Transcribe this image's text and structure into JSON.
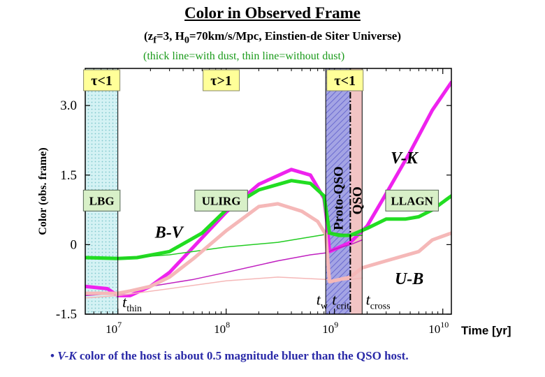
{
  "header": {
    "title": "Color in Observed Frame",
    "subtitle_pre": "(z",
    "subtitle_sub1": "f",
    "subtitle_mid": "=3, H",
    "subtitle_sub2": "0",
    "subtitle_post": "=70km/s/Mpc, Einstien-de Siter Universe)",
    "note": "(thick line=with dust,  thin line=without dust)"
  },
  "footer": {
    "bullet": "• ",
    "italic": "V-K",
    "text": " color of the host is about 0.5 magnitude bluer than the QSO host."
  },
  "chart_data": {
    "type": "line",
    "xscale": "log",
    "xlim": [
      5000000,
      12000000000
    ],
    "ylim": [
      -1.5,
      3.8
    ],
    "xlabel": "Time  [yr]",
    "ylabel": "Color (obs. frame)",
    "yticks": [
      {
        "value": 3.0,
        "label": "3.0"
      },
      {
        "value": 1.5,
        "label": "1.5"
      },
      {
        "value": 0,
        "label": "0"
      },
      {
        "value": -1.5,
        "label": "-1.5"
      }
    ],
    "xticks": [
      {
        "value": 10000000,
        "base": "10",
        "exp": "7"
      },
      {
        "value": 100000000,
        "base": "10",
        "exp": "8"
      },
      {
        "value": 1000000000,
        "base": "10",
        "exp": "9"
      },
      {
        "value": 10000000000,
        "base": "10",
        "exp": "10"
      }
    ],
    "regions": [
      {
        "name": "LBG",
        "x0": 5000000,
        "x1": 10000000,
        "color": "#cdeef0",
        "hatch": "dots"
      },
      {
        "name": "Proto-QSO",
        "x0": 830000000,
        "x1": 1400000000,
        "color": "#9e9ee0",
        "hatch": "diag"
      },
      {
        "name": "QSO",
        "x0": 1400000000,
        "x1": 1800000000,
        "color": "#f2c4c4",
        "hatch": "none"
      }
    ],
    "tau_labels": [
      {
        "text": "τ<1",
        "x": 7100000
      },
      {
        "text": "τ>1",
        "x": 90000000
      },
      {
        "text": "τ<1",
        "x": 1250000000
      }
    ],
    "phase_labels": [
      {
        "text": "LBG",
        "x": 7100000,
        "y": 0.95
      },
      {
        "text": "ULIRG",
        "x": 90000000,
        "y": 0.95
      },
      {
        "text": "LLAGN",
        "x": 5200000000,
        "y": 0.95
      }
    ],
    "vertical_labels": [
      {
        "text": "Proto-QSO",
        "x": 1070000000,
        "y": 1.0
      },
      {
        "text": "QSO",
        "x": 1600000000,
        "y": 0.95
      }
    ],
    "time_markers": [
      {
        "name": "t_thin",
        "base": "t",
        "sub": "thin",
        "x": 10000000,
        "label_x": 11000000,
        "label_y": -1.35,
        "line": "solid"
      },
      {
        "name": "t_w",
        "base": "t",
        "sub": "w",
        "x": 830000000,
        "label_x": 680000000,
        "label_y": -1.3,
        "line": "solid"
      },
      {
        "name": "t_crit",
        "base": "t",
        "sub": "crit",
        "x": 1400000000,
        "label_x": 950000000,
        "label_y": -1.3,
        "line": "dashdot"
      },
      {
        "name": "t_cross",
        "base": "t",
        "sub": "cross",
        "x": 1800000000,
        "label_x": 1950000000,
        "label_y": -1.3,
        "line": "solid"
      }
    ],
    "series_labels": [
      {
        "text": "B-V",
        "x": 22000000,
        "y": 0.15,
        "color": "#000000"
      },
      {
        "text": "V-K",
        "x": 3300000000,
        "y": 1.75,
        "color": "#000000"
      },
      {
        "text": "U-B",
        "x": 3600000000,
        "y": -0.85,
        "color": "#000000"
      }
    ],
    "series": [
      {
        "name": "V-K with dust",
        "color": "#ee22ee",
        "width": 5,
        "x": [
          5000000,
          8000000,
          10000000,
          13000000,
          20000000,
          30000000,
          50000000,
          100000000,
          200000000,
          400000000,
          600000000,
          800000000,
          850000000,
          900000000,
          1400000000,
          2000000000,
          3000000000,
          5000000000,
          8000000000,
          12000000000
        ],
        "y": [
          -0.9,
          -0.95,
          -1.1,
          -1.1,
          -0.9,
          -0.6,
          -0.05,
          0.7,
          1.3,
          1.62,
          1.5,
          1.0,
          0.5,
          -0.15,
          0.05,
          0.4,
          1.1,
          2.0,
          2.9,
          3.5
        ]
      },
      {
        "name": "V-K without dust",
        "color": "#c020c0",
        "width": 1.5,
        "x": [
          5000000,
          10000000,
          20000000,
          50000000,
          100000000,
          300000000,
          600000000,
          830000000,
          1000000000,
          1400000000,
          1800000000
        ],
        "y": [
          -1.1,
          -1.05,
          -0.9,
          -0.75,
          -0.6,
          -0.35,
          -0.22,
          -0.18,
          -0.1,
          0.0,
          0.1
        ]
      },
      {
        "name": "B-V with dust",
        "color": "#22dd22",
        "width": 5,
        "x": [
          5000000,
          10000000,
          15000000,
          30000000,
          60000000,
          100000000,
          200000000,
          400000000,
          600000000,
          800000000,
          900000000,
          1100000000,
          1400000000,
          2000000000,
          3000000000,
          4500000000,
          6000000000,
          8000000000,
          12000000000
        ],
        "y": [
          -0.28,
          -0.3,
          -0.28,
          -0.15,
          0.25,
          0.75,
          1.18,
          1.38,
          1.32,
          1.05,
          0.25,
          0.2,
          0.2,
          0.35,
          0.55,
          0.55,
          0.6,
          0.75,
          1.05
        ]
      },
      {
        "name": "B-V without dust",
        "color": "#22cc22",
        "width": 1.5,
        "x": [
          10000000,
          30000000,
          100000000,
          300000000,
          830000000,
          1000000000,
          1400000000,
          1800000000
        ],
        "y": [
          -0.3,
          -0.22,
          -0.05,
          0.05,
          0.22,
          0.25,
          0.2,
          0.2
        ]
      },
      {
        "name": "U-B with dust",
        "color": "#f5b8b8",
        "width": 5,
        "x": [
          5000000,
          10000000,
          13000000,
          20000000,
          30000000,
          50000000,
          100000000,
          200000000,
          300000000,
          500000000,
          700000000,
          830000000,
          900000000,
          1400000000,
          1800000000,
          3000000000,
          6000000000,
          8000000000,
          12000000000
        ],
        "y": [
          -1.05,
          -1.05,
          -1.0,
          -0.9,
          -0.7,
          -0.3,
          0.3,
          0.82,
          0.88,
          0.72,
          0.5,
          0.22,
          -0.8,
          -0.7,
          -0.5,
          -0.35,
          -0.15,
          0.1,
          0.25
        ]
      },
      {
        "name": "U-B without dust",
        "color": "#f5b8b8",
        "width": 1.5,
        "x": [
          5000000,
          10000000,
          30000000,
          100000000,
          300000000,
          830000000,
          1000000000,
          1400000000,
          1800000000
        ],
        "y": [
          -1.15,
          -1.1,
          -0.95,
          -0.78,
          -0.7,
          -0.75,
          -0.78,
          -0.75,
          -0.72
        ]
      }
    ]
  }
}
